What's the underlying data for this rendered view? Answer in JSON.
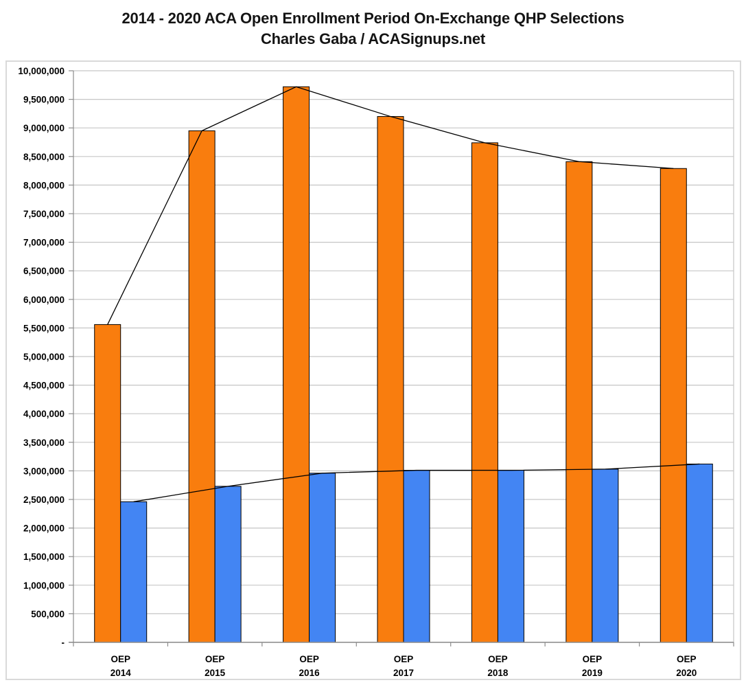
{
  "header": {
    "title_line1": "2014 - 2020 ACA Open Enrollment Period On-Exchange QHP Selections",
    "title_line2": "Charles Gaba / ACASignups.net"
  },
  "chart_data": {
    "type": "bar",
    "title": "2014 - 2020 ACA Open Enrollment Period On-Exchange QHP Selections",
    "subtitle": "Charles Gaba / ACASignups.net",
    "categories": [
      {
        "top": "OEP",
        "bottom": "2014"
      },
      {
        "top": "OEP",
        "bottom": "2015"
      },
      {
        "top": "OEP",
        "bottom": "2016"
      },
      {
        "top": "OEP",
        "bottom": "2017"
      },
      {
        "top": "OEP",
        "bottom": "2018"
      },
      {
        "top": "OEP",
        "bottom": "2019"
      },
      {
        "top": "OEP",
        "bottom": "2020"
      }
    ],
    "series": [
      {
        "name": "orange",
        "color": "#F97D0E",
        "values": [
          5560000,
          8950000,
          9720000,
          9200000,
          8740000,
          8410000,
          8290000
        ]
      },
      {
        "name": "blue",
        "color": "#4385F3",
        "values": [
          2460000,
          2730000,
          2960000,
          3010000,
          3010000,
          3030000,
          3120000
        ]
      }
    ],
    "connector_lines": true,
    "legend": "none",
    "grid": "horizontal",
    "ylim": [
      0,
      10000000
    ],
    "ytick_step": 500000,
    "ytick_labels": [
      "-",
      "500,000",
      "1,000,000",
      "1,500,000",
      "2,000,000",
      "2,500,000",
      "3,000,000",
      "3,500,000",
      "4,000,000",
      "4,500,000",
      "5,000,000",
      "5,500,000",
      "6,000,000",
      "6,500,000",
      "7,000,000",
      "7,500,000",
      "8,000,000",
      "8,500,000",
      "9,000,000",
      "9,500,000",
      "10,000,000"
    ]
  },
  "colors": {
    "bar_border": "#000000",
    "gridline": "#c6c6c6",
    "axis": "#8c8c8c",
    "connector_line": "#000000",
    "text": "#000000",
    "frame_border": "#d9d9d9"
  }
}
